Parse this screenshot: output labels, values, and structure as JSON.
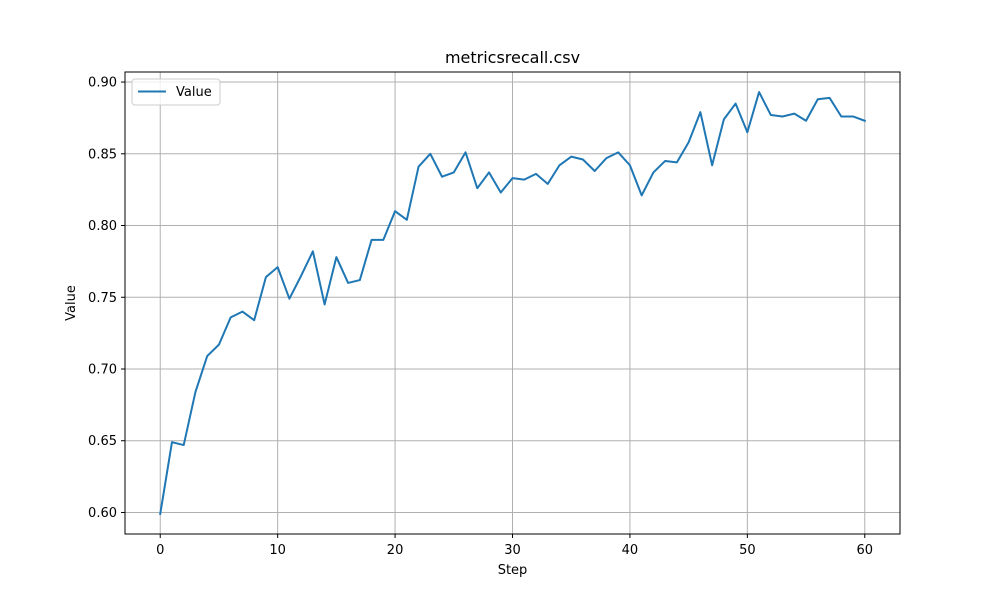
{
  "chart_data": {
    "type": "line",
    "title": "metricsrecall.csv",
    "xlabel": "Step",
    "ylabel": "Value",
    "xlim": [
      -3,
      63
    ],
    "ylim": [
      0.585,
      0.907
    ],
    "x_ticks": [
      0,
      10,
      20,
      30,
      40,
      50,
      60
    ],
    "y_ticks": [
      0.6,
      0.65,
      0.7,
      0.75,
      0.8,
      0.85,
      0.9
    ],
    "y_tick_labels": [
      "0.60",
      "0.65",
      "0.70",
      "0.75",
      "0.80",
      "0.85",
      "0.90"
    ],
    "grid": true,
    "legend_position": "upper-left",
    "series": [
      {
        "name": "Value",
        "color": "#1f77b4",
        "x": [
          0,
          1,
          2,
          3,
          4,
          5,
          6,
          7,
          8,
          9,
          10,
          11,
          12,
          13,
          14,
          15,
          16,
          17,
          18,
          19,
          20,
          21,
          22,
          23,
          24,
          25,
          26,
          27,
          28,
          29,
          30,
          31,
          32,
          33,
          34,
          35,
          36,
          37,
          38,
          39,
          40,
          41,
          42,
          43,
          44,
          45,
          46,
          47,
          48,
          49,
          50,
          51,
          52,
          53,
          54,
          55,
          56,
          57,
          58,
          59,
          60
        ],
        "y": [
          0.599,
          0.649,
          0.647,
          0.684,
          0.709,
          0.717,
          0.736,
          0.74,
          0.734,
          0.764,
          0.771,
          0.749,
          0.765,
          0.782,
          0.745,
          0.778,
          0.76,
          0.762,
          0.79,
          0.79,
          0.81,
          0.804,
          0.841,
          0.85,
          0.834,
          0.837,
          0.851,
          0.826,
          0.837,
          0.823,
          0.833,
          0.832,
          0.836,
          0.829,
          0.842,
          0.848,
          0.846,
          0.838,
          0.847,
          0.851,
          0.842,
          0.821,
          0.837,
          0.845,
          0.844,
          0.858,
          0.879,
          0.842,
          0.874,
          0.885,
          0.865,
          0.893,
          0.877,
          0.876,
          0.878,
          0.873,
          0.888,
          0.889,
          0.876,
          0.876,
          0.873
        ]
      }
    ]
  }
}
